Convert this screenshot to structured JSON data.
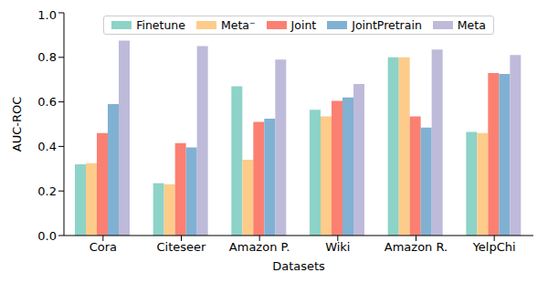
{
  "chart_data": {
    "type": "bar",
    "x_label": "Datasets",
    "y_label": "AUC-ROC",
    "categories": [
      "Cora",
      "Citeseer",
      "Amazon P.",
      "Wiki",
      "Amazon R.",
      "YelpChi"
    ],
    "series": [
      {
        "name": "Finetune",
        "color": "#8dd3c7",
        "values": [
          0.32,
          0.235,
          0.67,
          0.565,
          0.8,
          0.465
        ]
      },
      {
        "name": "Meta⁻",
        "color": "#fdcc8a",
        "values": [
          0.325,
          0.23,
          0.34,
          0.535,
          0.8,
          0.46
        ]
      },
      {
        "name": "Joint",
        "color": "#fb8072",
        "values": [
          0.46,
          0.415,
          0.51,
          0.605,
          0.535,
          0.73
        ]
      },
      {
        "name": "JointPretrain",
        "color": "#80b1d3",
        "values": [
          0.59,
          0.395,
          0.525,
          0.62,
          0.485,
          0.725
        ]
      },
      {
        "name": "Meta",
        "color": "#bebada",
        "values": [
          0.875,
          0.85,
          0.79,
          0.68,
          0.835,
          0.81
        ]
      }
    ],
    "ylim": [
      0,
      1
    ],
    "yticks": [
      {
        "value": 0,
        "label": "0.0"
      },
      {
        "value": 0.2,
        "label": "0.2"
      },
      {
        "value": 0.4,
        "label": "0.4"
      },
      {
        "value": 0.6,
        "label": "0.6"
      },
      {
        "value": 0.8,
        "label": "0.8"
      },
      {
        "value": 1,
        "label": "1.0"
      }
    ],
    "grid": false,
    "legend": "upper center"
  }
}
